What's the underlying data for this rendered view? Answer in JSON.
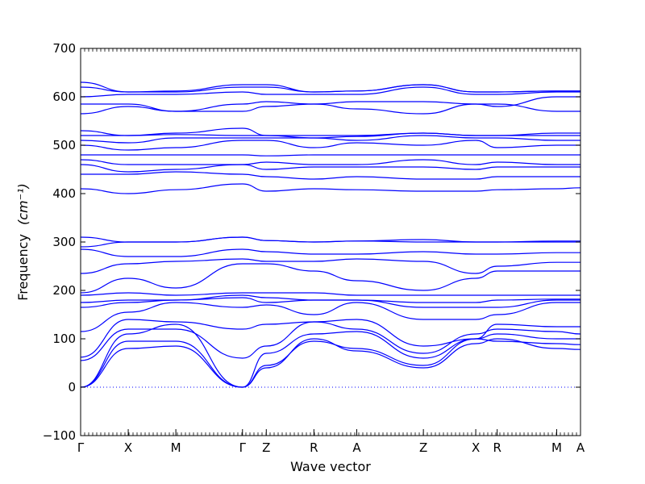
{
  "chart_data": {
    "type": "line",
    "xlabel": "Wave vector",
    "ylabel": "Frequency",
    "ylabel_unit": "(cm⁻¹)",
    "ylim": [
      -100,
      700
    ],
    "yticks": [
      -100,
      0,
      100,
      200,
      300,
      400,
      500,
      600,
      700
    ],
    "grid": false,
    "line_color": "#0000ff",
    "zero_line": {
      "y": 0,
      "style": "dotted",
      "color": "#0000ff"
    },
    "x": [
      0,
      1,
      2,
      3.4,
      3.9,
      4.9,
      5.8,
      7.2,
      8.3,
      8.75,
      10,
      10.5
    ],
    "x_ticks": [
      "Γ",
      "X",
      "M",
      "Γ",
      "Z",
      "R",
      "A",
      "Z",
      "X",
      "R",
      "M",
      "A"
    ],
    "series": [
      {
        "values": [
          0,
          80,
          85,
          0,
          40,
          100,
          75,
          40,
          90,
          100,
          80,
          78
        ]
      },
      {
        "values": [
          0,
          95,
          95,
          0,
          45,
          95,
          80,
          45,
          100,
          95,
          90,
          88
        ]
      },
      {
        "values": [
          0,
          110,
          130,
          0,
          70,
          110,
          115,
          60,
          100,
          110,
          100,
          100
        ]
      },
      {
        "values": [
          55,
          120,
          120,
          60,
          85,
          135,
          120,
          70,
          110,
          120,
          115,
          110
        ]
      },
      {
        "values": [
          62,
          140,
          135,
          120,
          130,
          135,
          140,
          85,
          100,
          130,
          125,
          125
        ]
      },
      {
        "values": [
          115,
          155,
          175,
          165,
          170,
          150,
          175,
          140,
          140,
          150,
          175,
          175
        ]
      },
      {
        "values": [
          165,
          175,
          180,
          185,
          175,
          180,
          180,
          165,
          165,
          165,
          180,
          180
        ]
      },
      {
        "values": [
          175,
          180,
          180,
          190,
          185,
          180,
          180,
          175,
          175,
          180,
          182,
          182
        ]
      },
      {
        "values": [
          190,
          195,
          190,
          195,
          195,
          195,
          190,
          190,
          190,
          190,
          190,
          190
        ]
      },
      {
        "values": [
          195,
          225,
          205,
          255,
          255,
          240,
          220,
          200,
          225,
          240,
          240,
          240
        ]
      },
      {
        "values": [
          235,
          255,
          260,
          265,
          260,
          260,
          265,
          260,
          235,
          250,
          258,
          258
        ]
      },
      {
        "values": [
          285,
          270,
          270,
          285,
          280,
          275,
          275,
          280,
          275,
          275,
          278,
          278
        ]
      },
      {
        "values": [
          290,
          300,
          300,
          310,
          303,
          300,
          302,
          300,
          300,
          300,
          300,
          300
        ]
      },
      {
        "values": [
          310,
          300,
          300,
          310,
          303,
          300,
          302,
          305,
          300,
          300,
          302,
          302
        ]
      },
      {
        "values": [
          410,
          400,
          408,
          420,
          405,
          410,
          408,
          405,
          405,
          408,
          410,
          412
        ]
      },
      {
        "values": [
          440,
          440,
          445,
          440,
          435,
          430,
          435,
          430,
          430,
          435,
          435,
          435
        ]
      },
      {
        "values": [
          460,
          445,
          450,
          460,
          450,
          455,
          455,
          455,
          450,
          455,
          455,
          455
        ]
      },
      {
        "values": [
          470,
          460,
          460,
          460,
          465,
          460,
          460,
          470,
          460,
          465,
          460,
          460
        ]
      },
      {
        "values": [
          480,
          480,
          480,
          480,
          478,
          480,
          480,
          480,
          480,
          480,
          480,
          480
        ]
      },
      {
        "values": [
          500,
          490,
          495,
          510,
          510,
          495,
          505,
          500,
          510,
          495,
          500,
          500
        ]
      },
      {
        "values": [
          510,
          505,
          515,
          515,
          515,
          515,
          510,
          520,
          515,
          515,
          510,
          510
        ]
      },
      {
        "values": [
          520,
          520,
          522,
          520,
          520,
          520,
          520,
          525,
          520,
          520,
          520,
          520
        ]
      },
      {
        "values": [
          530,
          520,
          525,
          535,
          520,
          515,
          518,
          525,
          520,
          520,
          525,
          525
        ]
      },
      {
        "values": [
          565,
          580,
          570,
          570,
          580,
          585,
          575,
          565,
          585,
          585,
          570,
          570
        ]
      },
      {
        "values": [
          585,
          585,
          570,
          585,
          590,
          585,
          590,
          590,
          585,
          580,
          600,
          600
        ]
      },
      {
        "values": [
          600,
          605,
          605,
          610,
          605,
          605,
          605,
          620,
          605,
          605,
          610,
          610
        ]
      },
      {
        "values": [
          620,
          610,
          610,
          620,
          620,
          610,
          612,
          625,
          610,
          610,
          612,
          612
        ]
      },
      {
        "values": [
          630,
          610,
          612,
          625,
          625,
          610,
          612,
          625,
          610,
          610,
          612,
          612
        ]
      }
    ]
  }
}
